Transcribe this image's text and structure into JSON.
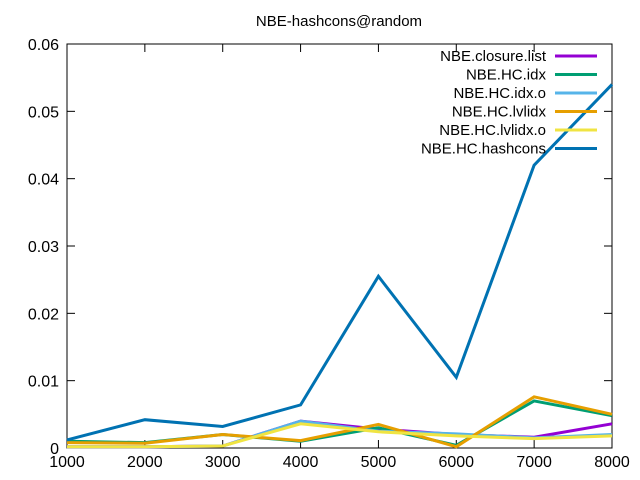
{
  "chart_data": {
    "type": "line",
    "title": "NBE-hashcons@random",
    "xlabel": "",
    "ylabel": "",
    "x": [
      1000,
      2000,
      3000,
      4000,
      5000,
      6000,
      7000,
      8000
    ],
    "xlim": [
      1000,
      8000
    ],
    "ylim": [
      0,
      0.06
    ],
    "xticks": [
      1000,
      2000,
      3000,
      4000,
      5000,
      6000,
      7000,
      8000
    ],
    "yticks": [
      0,
      0.01,
      0.02,
      0.03,
      0.04,
      0.05,
      0.06
    ],
    "xtick_labels": [
      "1000",
      "2000",
      "3000",
      "4000",
      "5000",
      "6000",
      "7000",
      "8000"
    ],
    "ytick_labels": [
      "0",
      "0.01",
      "0.02",
      "0.03",
      "0.04",
      "0.05",
      "0.06"
    ],
    "grid": false,
    "legend_position": "top-right",
    "series": [
      {
        "name": "NBE.closure.list",
        "color": "#9400d3",
        "values": [
          0.0002,
          0.0002,
          0.0003,
          0.004,
          0.0028,
          0.002,
          0.0016,
          0.0036
        ]
      },
      {
        "name": "NBE.HC.idx",
        "color": "#009e73",
        "values": [
          0.001,
          0.0008,
          0.002,
          0.001,
          0.003,
          0.0004,
          0.007,
          0.0048
        ]
      },
      {
        "name": "NBE.HC.idx.o",
        "color": "#56b4e9",
        "values": [
          0.0002,
          0.0002,
          0.0003,
          0.004,
          0.0025,
          0.0021,
          0.0015,
          0.002
        ]
      },
      {
        "name": "NBE.HC.lvlidx",
        "color": "#e69f00",
        "values": [
          0.0008,
          0.0007,
          0.002,
          0.0011,
          0.0035,
          0.0002,
          0.0076,
          0.005
        ]
      },
      {
        "name": "NBE.HC.lvlidx.o",
        "color": "#f0e442",
        "values": [
          0.0002,
          0.0002,
          0.0003,
          0.0036,
          0.0024,
          0.0018,
          0.0014,
          0.0018
        ]
      },
      {
        "name": "NBE.HC.hashcons",
        "color": "#0072b2",
        "values": [
          0.0012,
          0.0042,
          0.0032,
          0.0064,
          0.0255,
          0.0105,
          0.042,
          0.054
        ]
      }
    ]
  }
}
